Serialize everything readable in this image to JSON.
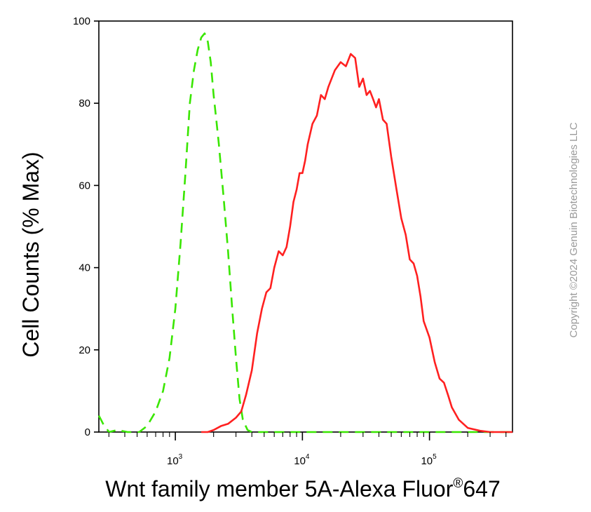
{
  "chart_data": {
    "type": "line",
    "xlabel": "Wnt family member 5A-Alexa Fluor",
    "xlabel_superscript": "®",
    "xlabel_suffix": "647",
    "ylabel": "Cell Counts (% Max)",
    "x_scale": "log",
    "xlim": [
      250,
      450000
    ],
    "ylim": [
      0,
      100
    ],
    "y_ticks": [
      0,
      20,
      40,
      60,
      80,
      100
    ],
    "y_tick_labels": [
      "0",
      "20",
      "40",
      "60",
      "80",
      "100"
    ],
    "x_major_ticks": [
      {
        "value": 1000,
        "base": "10",
        "exp": "3"
      },
      {
        "value": 10000,
        "base": "10",
        "exp": "4"
      },
      {
        "value": 100000,
        "base": "10",
        "exp": "5"
      }
    ],
    "grid": false,
    "legend": "none",
    "series": [
      {
        "color": "#39e600",
        "dash": "dashed",
        "x": [
          250,
          270,
          300,
          350,
          420,
          520,
          600,
          700,
          800,
          900,
          1000,
          1100,
          1200,
          1300,
          1400,
          1500,
          1600,
          1700,
          1800,
          1900,
          2000,
          2100,
          2200,
          2400,
          2600,
          2800,
          3000,
          3200,
          3400,
          3700,
          4000,
          5000,
          10000,
          100000,
          450000
        ],
        "y": [
          4,
          2,
          0,
          0.5,
          0,
          0,
          1.5,
          5,
          10,
          18,
          30,
          46,
          63,
          80,
          88,
          93,
          96,
          97,
          95,
          90,
          82,
          76,
          70,
          57,
          44,
          30,
          18,
          8,
          3,
          0.5,
          0,
          0,
          0,
          0,
          0
        ]
      },
      {
        "color": "#ff2020",
        "dash": "solid",
        "x": [
          1600,
          1800,
          2000,
          2300,
          2600,
          3000,
          3300,
          3600,
          4000,
          4400,
          4800,
          5200,
          5600,
          6000,
          6500,
          7000,
          7500,
          8000,
          8500,
          9000,
          9500,
          10000,
          10500,
          11000,
          12000,
          13000,
          14000,
          15000,
          16000,
          18000,
          20000,
          22000,
          24000,
          26000,
          28000,
          30000,
          32000,
          34000,
          36000,
          38000,
          40000,
          43000,
          46000,
          50000,
          55000,
          60000,
          65000,
          70000,
          75000,
          80000,
          85000,
          90000,
          100000,
          110000,
          120000,
          130000,
          140000,
          150000,
          170000,
          200000,
          250000,
          300000,
          450000
        ],
        "y": [
          0,
          0,
          0.5,
          1.5,
          2,
          3.5,
          5,
          9,
          15,
          24,
          30,
          34,
          35,
          40,
          44,
          43,
          45,
          50,
          56,
          59,
          63,
          63,
          66,
          70,
          75,
          77,
          82,
          81,
          84,
          88,
          90,
          89,
          92,
          91,
          84,
          86,
          82,
          83,
          81,
          79,
          81,
          76,
          75,
          67,
          59,
          52,
          48,
          42,
          41,
          38,
          33,
          27,
          23,
          17,
          13,
          12,
          9,
          6,
          3,
          1,
          0.3,
          0,
          0
        ]
      }
    ]
  },
  "watermark": "Copyright ©2024 Genuin Biotechnologies LLC"
}
